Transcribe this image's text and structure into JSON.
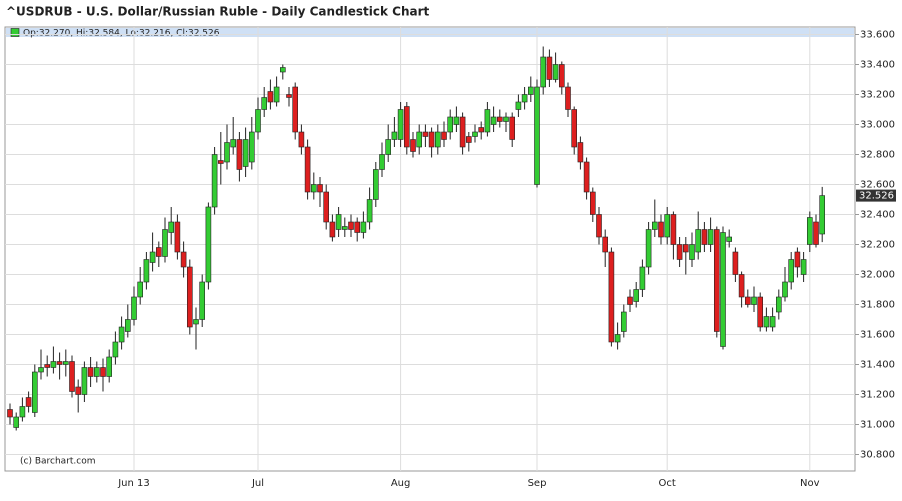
{
  "chart_data": {
    "type": "candlestick",
    "title": "^USDRUB - U.S. Dollar/Russian Ruble - Daily Candlestick Chart",
    "legend_text": "Op:32.270, Hi:32.584, Lo:32.216, Cl:32.526",
    "credit": "(c) Barchart.com",
    "last_value_label": "32.526",
    "up_color": "#33cc33",
    "down_color": "#dd1f1f",
    "grid": true,
    "ylim": [
      30.69,
      33.65
    ],
    "yticks": [
      {
        "value": 30.8,
        "label": "30.800"
      },
      {
        "value": 31.0,
        "label": "31.000"
      },
      {
        "value": 31.2,
        "label": "31.200"
      },
      {
        "value": 31.4,
        "label": "31.400"
      },
      {
        "value": 31.6,
        "label": "31.600"
      },
      {
        "value": 31.8,
        "label": "31.800"
      },
      {
        "value": 32.0,
        "label": "32.000"
      },
      {
        "value": 32.2,
        "label": "32.200"
      },
      {
        "value": 32.4,
        "label": "32.400"
      },
      {
        "value": 32.6,
        "label": "32.600"
      },
      {
        "value": 32.8,
        "label": "32.800"
      },
      {
        "value": 33.0,
        "label": "33.000"
      },
      {
        "value": 33.2,
        "label": "33.200"
      },
      {
        "value": 33.4,
        "label": "33.400"
      },
      {
        "value": 33.6,
        "label": "33.600"
      }
    ],
    "categories": [
      null,
      null,
      null,
      null,
      null,
      null,
      null,
      null,
      null,
      null,
      null,
      null,
      null,
      null,
      null,
      null,
      null,
      null,
      null,
      null,
      "Jun 13",
      null,
      null,
      null,
      null,
      null,
      null,
      null,
      null,
      null,
      null,
      null,
      null,
      null,
      null,
      null,
      null,
      null,
      null,
      null,
      "Jul",
      null,
      null,
      null,
      null,
      null,
      null,
      null,
      null,
      null,
      null,
      null,
      null,
      null,
      null,
      null,
      null,
      null,
      null,
      null,
      null,
      null,
      null,
      "Aug",
      null,
      null,
      null,
      null,
      null,
      null,
      null,
      null,
      null,
      null,
      null,
      null,
      null,
      null,
      null,
      null,
      null,
      null,
      null,
      null,
      null,
      "Sep",
      null,
      null,
      null,
      null,
      null,
      null,
      null,
      null,
      null,
      null,
      null,
      null,
      null,
      null,
      null,
      null,
      null,
      null,
      null,
      null,
      "Oct",
      null,
      null,
      null,
      null,
      null,
      null,
      null,
      null,
      null,
      null,
      null,
      null,
      null,
      null,
      null,
      null,
      null,
      null,
      null,
      null,
      null,
      null,
      "Nov",
      null,
      null
    ],
    "open": [
      31.1,
      30.98,
      31.05,
      31.18,
      31.08,
      31.35,
      31.4,
      31.38,
      31.42,
      31.4,
      31.42,
      31.25,
      31.2,
      31.38,
      31.32,
      31.38,
      31.32,
      31.45,
      31.55,
      31.62,
      31.7,
      31.85,
      31.95,
      32.08,
      32.18,
      32.12,
      32.28,
      32.35,
      32.15,
      32.05,
      31.67,
      31.7,
      31.95,
      32.45,
      32.76,
      32.75,
      32.85,
      32.9,
      32.72,
      32.75,
      32.95,
      33.1,
      33.22,
      33.15,
      33.35,
      33.2,
      33.25,
      32.95,
      32.85,
      32.55,
      32.6,
      32.55,
      32.35,
      32.3,
      32.3,
      32.35,
      32.35,
      32.28,
      32.35,
      32.5,
      32.7,
      32.8,
      32.9,
      32.9,
      33.12,
      32.9,
      32.85,
      32.95,
      32.95,
      32.85,
      32.95,
      32.95,
      33.0,
      33.05,
      32.92,
      32.92,
      32.98,
      32.95,
      33.0,
      33.05,
      33.02,
      33.05,
      33.1,
      33.15,
      33.2,
      32.6,
      33.25,
      33.45,
      33.3,
      33.4,
      33.25,
      33.1,
      32.88,
      32.75,
      32.55,
      32.4,
      32.25,
      32.15,
      31.55,
      31.62,
      31.85,
      31.82,
      31.9,
      32.05,
      32.3,
      32.35,
      32.25,
      32.4,
      32.2,
      32.2,
      32.1,
      32.15,
      32.3,
      32.2,
      32.3,
      31.52,
      32.22,
      32.15,
      32.0,
      31.85,
      31.8,
      31.85,
      31.65,
      31.65,
      31.75,
      31.85,
      31.95,
      32.15,
      32.0,
      32.2,
      32.35,
      32.27
    ],
    "high": [
      31.14,
      31.08,
      31.18,
      31.22,
      31.4,
      31.5,
      31.46,
      31.52,
      31.48,
      31.5,
      31.46,
      31.3,
      31.42,
      31.45,
      31.42,
      31.44,
      31.5,
      31.62,
      31.72,
      31.8,
      31.92,
      32.05,
      32.15,
      32.28,
      32.22,
      32.38,
      32.45,
      32.4,
      32.22,
      32.1,
      31.78,
      32.0,
      32.48,
      32.85,
      32.95,
      33.0,
      33.05,
      32.95,
      32.98,
      33.05,
      33.18,
      33.25,
      33.3,
      33.32,
      33.4,
      33.25,
      33.28,
      33.0,
      32.9,
      32.68,
      32.65,
      32.6,
      32.4,
      32.45,
      32.38,
      32.4,
      32.38,
      32.42,
      32.58,
      32.75,
      32.88,
      33.0,
      33.05,
      33.15,
      33.15,
      32.95,
      33.0,
      33.0,
      32.98,
      33.0,
      33.02,
      33.1,
      33.12,
      33.08,
      32.95,
      33.0,
      33.02,
      33.15,
      33.12,
      33.1,
      33.08,
      33.08,
      33.2,
      33.25,
      33.32,
      33.3,
      33.52,
      33.5,
      33.48,
      33.42,
      33.28,
      33.12,
      32.92,
      32.78,
      32.58,
      32.45,
      32.3,
      32.18,
      31.68,
      31.8,
      31.9,
      31.95,
      32.1,
      32.35,
      32.5,
      32.4,
      32.45,
      32.42,
      32.25,
      32.25,
      32.28,
      32.42,
      32.35,
      32.38,
      32.32,
      32.32,
      32.3,
      32.18,
      32.02,
      31.9,
      31.92,
      31.88,
      31.78,
      31.78,
      31.9,
      32.05,
      32.15,
      32.18,
      32.15,
      32.42,
      32.4,
      32.584
    ],
    "low": [
      31.0,
      30.96,
      31.02,
      31.08,
      31.05,
      31.3,
      31.32,
      31.34,
      31.3,
      31.32,
      31.18,
      31.08,
      31.15,
      31.25,
      31.28,
      31.22,
      31.28,
      31.4,
      31.5,
      31.58,
      31.66,
      31.8,
      31.9,
      32.02,
      32.05,
      32.08,
      32.2,
      32.1,
      31.98,
      31.6,
      31.5,
      31.65,
      31.9,
      32.4,
      32.6,
      32.7,
      32.8,
      32.62,
      32.65,
      32.7,
      32.9,
      33.05,
      33.1,
      33.12,
      33.3,
      33.12,
      32.9,
      32.8,
      32.5,
      32.5,
      32.45,
      32.3,
      32.22,
      32.25,
      32.25,
      32.25,
      32.22,
      32.24,
      32.3,
      32.45,
      32.65,
      32.75,
      32.85,
      32.85,
      32.8,
      32.78,
      32.8,
      32.85,
      32.78,
      32.8,
      32.85,
      32.9,
      32.95,
      32.8,
      32.82,
      32.88,
      32.9,
      32.92,
      32.95,
      32.98,
      32.95,
      32.85,
      33.05,
      33.1,
      33.15,
      32.58,
      33.2,
      33.25,
      33.28,
      33.2,
      33.05,
      32.8,
      32.7,
      32.5,
      32.35,
      32.2,
      32.05,
      31.52,
      31.5,
      31.58,
      31.75,
      31.78,
      31.85,
      32.0,
      32.25,
      32.2,
      32.2,
      32.1,
      32.05,
      32.0,
      32.05,
      32.1,
      32.15,
      32.15,
      31.58,
      31.5,
      32.18,
      31.95,
      31.78,
      31.78,
      31.75,
      31.62,
      31.62,
      31.62,
      31.7,
      31.82,
      31.9,
      31.98,
      31.95,
      32.15,
      32.18,
      32.216
    ],
    "close": [
      31.05,
      31.05,
      31.12,
      31.12,
      31.35,
      31.38,
      31.38,
      31.42,
      31.4,
      31.42,
      31.22,
      31.2,
      31.38,
      31.32,
      31.38,
      31.32,
      31.45,
      31.55,
      31.65,
      31.7,
      31.85,
      31.95,
      32.1,
      32.15,
      32.12,
      32.3,
      32.35,
      32.15,
      32.05,
      31.65,
      31.7,
      31.95,
      32.45,
      32.8,
      32.74,
      32.88,
      32.9,
      32.7,
      32.9,
      32.95,
      33.1,
      33.18,
      33.15,
      33.25,
      33.38,
      33.18,
      32.95,
      32.85,
      32.55,
      32.6,
      32.55,
      32.35,
      32.25,
      32.4,
      32.32,
      32.3,
      32.28,
      32.35,
      32.5,
      32.7,
      32.8,
      32.9,
      32.95,
      33.1,
      32.85,
      32.82,
      32.95,
      32.92,
      32.85,
      32.95,
      32.9,
      33.05,
      33.05,
      32.85,
      32.88,
      32.95,
      32.95,
      33.1,
      33.05,
      33.02,
      33.05,
      32.9,
      33.15,
      33.2,
      33.25,
      33.25,
      33.45,
      33.3,
      33.4,
      33.25,
      33.1,
      32.85,
      32.75,
      32.55,
      32.4,
      32.25,
      32.15,
      31.55,
      31.6,
      31.75,
      31.8,
      31.9,
      32.05,
      32.3,
      32.35,
      32.25,
      32.4,
      32.2,
      32.1,
      32.15,
      32.2,
      32.3,
      32.2,
      32.3,
      31.62,
      32.28,
      32.25,
      32.0,
      31.85,
      31.8,
      31.85,
      31.65,
      31.72,
      31.72,
      31.85,
      31.95,
      32.1,
      32.05,
      32.1,
      32.38,
      32.2,
      32.526
    ]
  }
}
